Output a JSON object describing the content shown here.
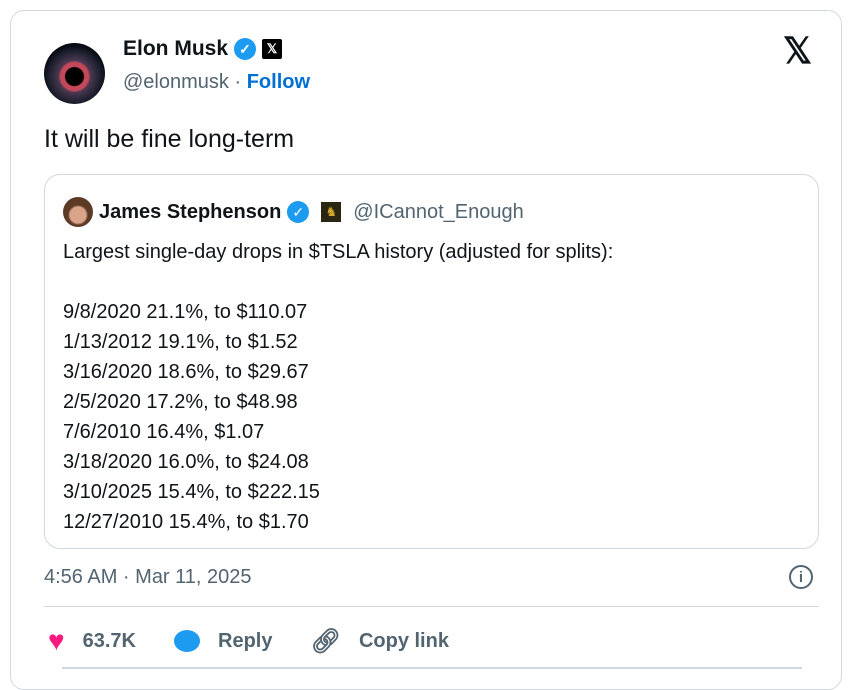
{
  "author": {
    "name": "Elon Musk",
    "handle": "@elonmusk",
    "separator": "·",
    "follow": "Follow"
  },
  "tweet_text": "It will be fine long-term",
  "quote": {
    "name": "James Stephenson",
    "handle": "@ICannot_Enough",
    "intro": "Largest single-day drops in $TSLA history (adjusted for splits):",
    "lines": [
      "9/8/2020 21.1%, to $110.07",
      "1/13/2012 19.1%, to $1.52",
      "3/16/2020 18.6%, to $29.67",
      "2/5/2020 17.2%, to $48.98",
      "7/6/2010 16.4%, $1.07",
      "3/18/2020 16.0%, to $24.08",
      "3/10/2025 15.4%, to $222.15",
      "12/27/2010 15.4%, to $1.70"
    ]
  },
  "timestamp": "4:56 AM · Mar 11, 2025",
  "actions": {
    "likes": "63.7K",
    "reply": "Reply",
    "copy_link": "Copy link"
  },
  "colors": {
    "accent": "#1d9bf0",
    "like": "#f91880",
    "follow": "#006fd6"
  }
}
